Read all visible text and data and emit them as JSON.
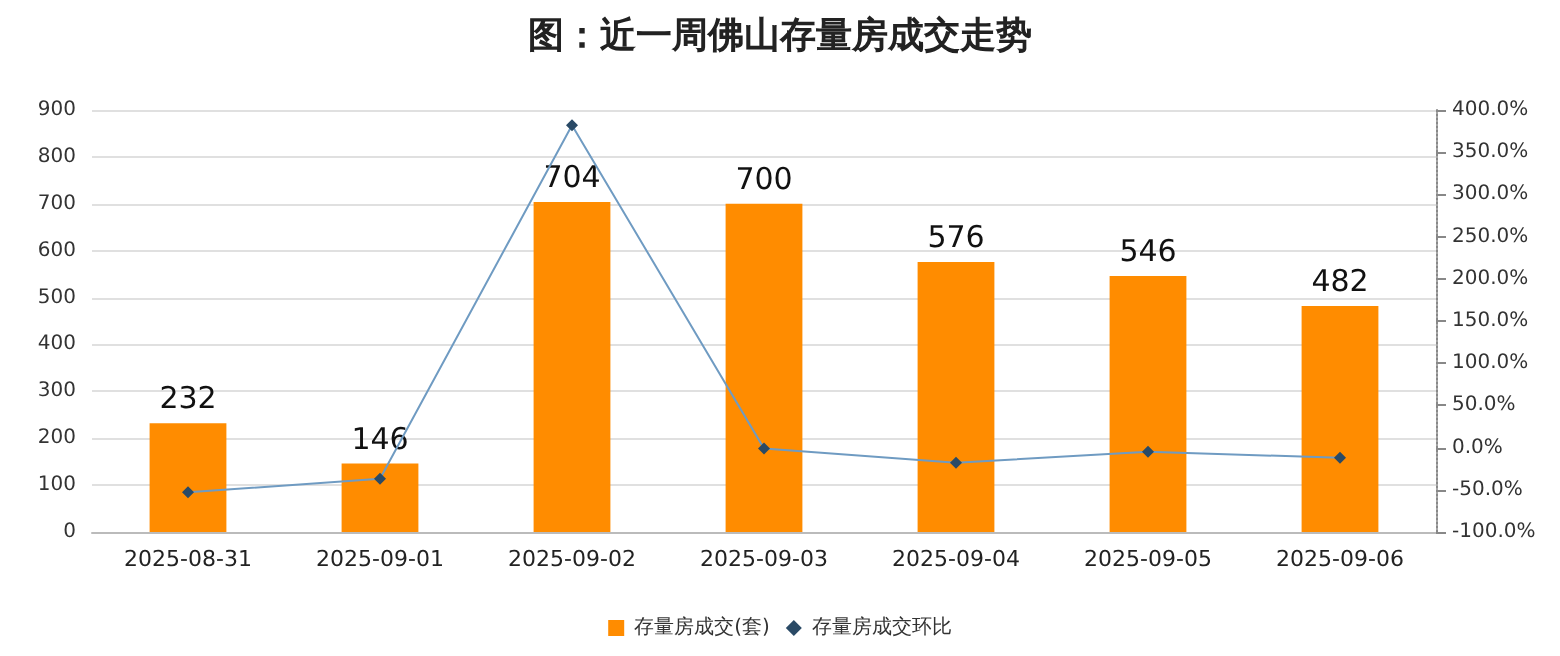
{
  "chart_data": {
    "type": "bar",
    "title": "图：近一周佛山存量房成交走势",
    "categories": [
      "2025-08-31",
      "2025-09-01",
      "2025-09-02",
      "2025-09-03",
      "2025-09-04",
      "2025-09-05",
      "2025-09-06"
    ],
    "series": [
      {
        "name": "存量房成交(套)",
        "color": "#ff8c00",
        "values": [
          232,
          146,
          704,
          700,
          576,
          546,
          482
        ],
        "data_labels": true
      },
      {
        "name": "存量房成交环比",
        "type": "line",
        "axis": "y2",
        "color": "#6f9bc2",
        "marker": "diamond",
        "values": [
          -53,
          -37,
          382,
          -1,
          -18,
          -5,
          -12
        ]
      }
    ],
    "ylim": [
      0,
      900
    ],
    "yticks": [
      0,
      100,
      200,
      300,
      400,
      500,
      600,
      700,
      800,
      900
    ],
    "y2lim": [
      -100,
      400
    ],
    "y2ticks": [
      {
        "value": -100,
        "label": "-100.0%"
      },
      {
        "value": -50,
        "label": "-50.0%"
      },
      {
        "value": 0,
        "label": "0.0%"
      },
      {
        "value": 50,
        "label": "50.0%"
      },
      {
        "value": 100,
        "label": "100.0%"
      },
      {
        "value": 150,
        "label": "150.0%"
      },
      {
        "value": 200,
        "label": "200.0%"
      },
      {
        "value": 250,
        "label": "250.0%"
      },
      {
        "value": 300,
        "label": "300.0%"
      },
      {
        "value": 350,
        "label": "350.0%"
      },
      {
        "value": 400,
        "label": "400.0%"
      }
    ],
    "grid": "y",
    "legend": "bottom"
  }
}
